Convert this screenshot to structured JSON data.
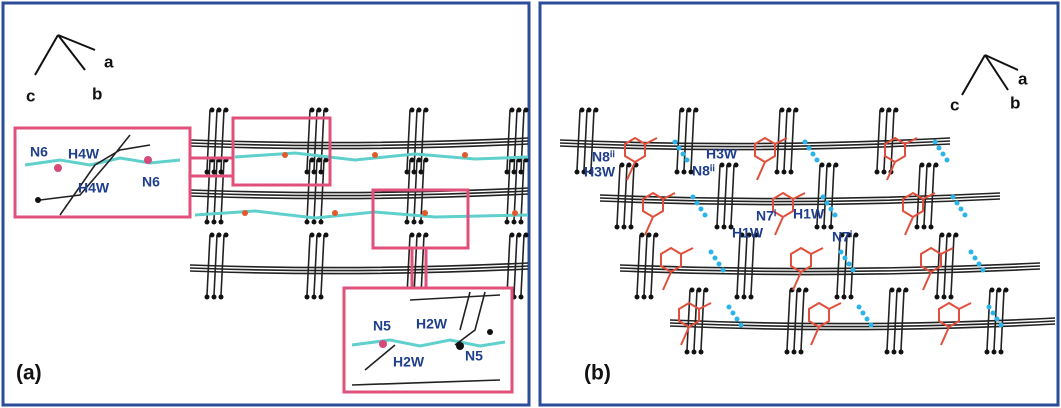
{
  "panels": [
    {
      "label": "(a)",
      "axes": {
        "a": "a",
        "b": "b",
        "c": "c"
      },
      "insets": [
        {
          "labels": [
            "N6",
            "H4W",
            "H4W",
            "N6"
          ]
        },
        {
          "labels": [
            "N5",
            "H2W",
            "H2W",
            "N5"
          ]
        }
      ]
    },
    {
      "label": "(b)",
      "axes": {
        "a": "a",
        "b": "b",
        "c": "c"
      },
      "labels": [
        "N8ⁱⁱ",
        "H3W",
        "H3W",
        "N8ⁱⁱ",
        "N7ⁱ",
        "H1W",
        "H1W",
        "N7ⁱ"
      ]
    }
  ]
}
